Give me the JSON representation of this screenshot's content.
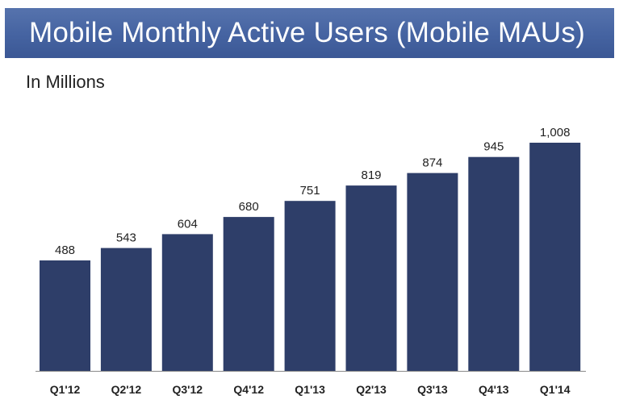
{
  "header": {
    "title": "Mobile Monthly Active Users (Mobile MAUs)",
    "subtitle": "In Millions"
  },
  "colors": {
    "bar": "#2e3e69",
    "banner": "#4563a1",
    "axis": "#8a8a8a"
  },
  "chart_data": {
    "type": "bar",
    "title": "Mobile Monthly Active Users (Mobile MAUs)",
    "subtitle": "In Millions",
    "categories": [
      "Q1'12",
      "Q2'12",
      "Q3'12",
      "Q4'12",
      "Q1'13",
      "Q2'13",
      "Q3'13",
      "Q4'13",
      "Q1'14"
    ],
    "values": [
      488,
      543,
      604,
      680,
      751,
      819,
      874,
      945,
      1008
    ],
    "value_labels": [
      "488",
      "543",
      "604",
      "680",
      "751",
      "819",
      "874",
      "945",
      "1,008"
    ],
    "xlabel": "",
    "ylabel": "",
    "ylim": [
      0,
      1008
    ],
    "grid": false,
    "legend": "none"
  }
}
